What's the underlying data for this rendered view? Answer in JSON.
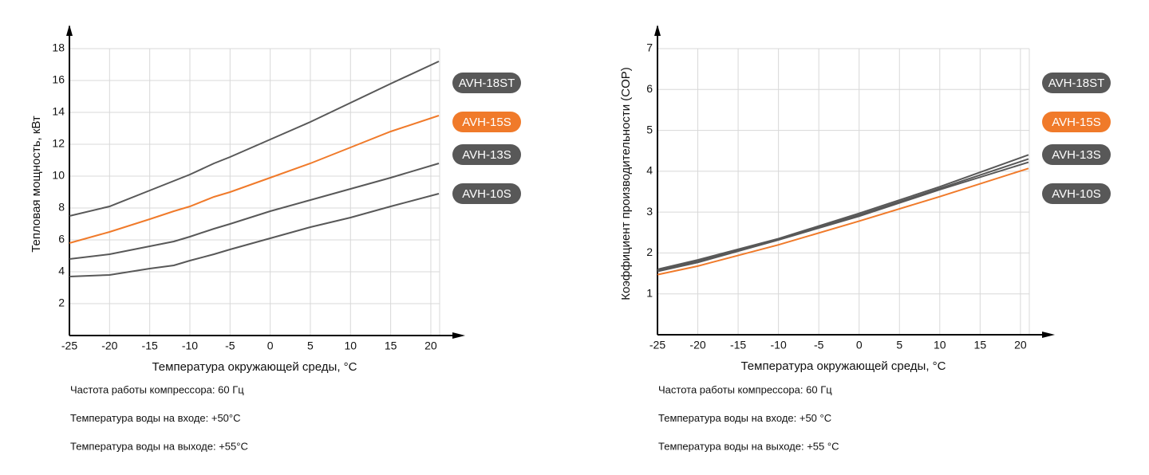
{
  "chart_data": [
    {
      "type": "line",
      "y_label": "Тепловая мощность, кВт",
      "x_label": "Температура окружающей среды, °C",
      "x": [
        -25,
        -20,
        -15,
        -12,
        -10,
        -7,
        -5,
        0,
        5,
        10,
        15,
        21
      ],
      "series": [
        {
          "name": "AVH-18ST",
          "color": "#585858",
          "values": [
            7.5,
            8.1,
            9.1,
            9.7,
            10.1,
            10.8,
            11.2,
            12.3,
            13.4,
            14.6,
            15.8,
            17.2
          ]
        },
        {
          "name": "AVH-15S",
          "color": "#f07a2a",
          "values": [
            5.8,
            6.5,
            7.3,
            7.8,
            8.1,
            8.7,
            9.0,
            9.9,
            10.8,
            11.8,
            12.8,
            13.8
          ]
        },
        {
          "name": "AVH-13S",
          "color": "#585858",
          "values": [
            4.8,
            5.1,
            5.6,
            5.9,
            6.2,
            6.7,
            7.0,
            7.8,
            8.5,
            9.2,
            9.9,
            10.8
          ]
        },
        {
          "name": "AVH-10S",
          "color": "#585858",
          "values": [
            3.7,
            3.8,
            4.2,
            4.4,
            4.7,
            5.1,
            5.4,
            6.1,
            6.8,
            7.4,
            8.1,
            8.9
          ]
        }
      ],
      "xlim": [
        -25,
        21.1
      ],
      "xticks": [
        -25,
        -20,
        -15,
        -10,
        -5,
        0,
        5,
        10,
        15,
        20
      ],
      "ylim": [
        0,
        18
      ],
      "yticks": [
        2,
        4,
        6,
        8,
        10,
        12,
        14,
        16,
        18
      ],
      "grid": true,
      "notes": [
        "Частота работы компрессора: 60 Гц",
        "Температура воды на входе: +50°C",
        "Температура воды на выходе: +55°C"
      ]
    },
    {
      "type": "line",
      "y_label": "Коэффициент производительности (COP)",
      "x_label": "Температура окружающей среды, °C",
      "x": [
        -25,
        -20,
        -10,
        0,
        10,
        21
      ],
      "series": [
        {
          "name": "AVH-18ST",
          "color": "#585858",
          "values": [
            1.6,
            1.83,
            2.35,
            2.97,
            3.62,
            4.4
          ]
        },
        {
          "name": "AVH-15S",
          "color": "#f07a2a",
          "values": [
            1.47,
            1.68,
            2.2,
            2.78,
            3.38,
            4.07
          ]
        },
        {
          "name": "AVH-13S",
          "color": "#585858",
          "values": [
            1.58,
            1.8,
            2.33,
            2.93,
            3.58,
            4.3
          ]
        },
        {
          "name": "AVH-10S",
          "color": "#585858",
          "values": [
            1.55,
            1.77,
            2.32,
            2.9,
            3.55,
            4.22
          ]
        }
      ],
      "xlim": [
        -25,
        21.1
      ],
      "xticks": [
        -25,
        -20,
        -15,
        -10,
        -5,
        0,
        5,
        10,
        15,
        20
      ],
      "ylim": [
        0,
        7
      ],
      "yticks": [
        1,
        2,
        3,
        4,
        5,
        6,
        7
      ],
      "grid": true,
      "notes": [
        "Частота работы компрессора: 60 Гц",
        "Температура воды на входе: +50 °C",
        "Температура воды на выходе: +55 °C"
      ]
    }
  ]
}
